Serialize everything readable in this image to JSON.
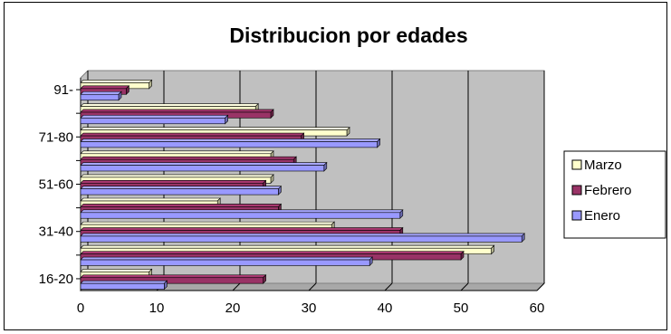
{
  "chart_data": {
    "type": "bar",
    "orientation": "horizontal",
    "title": "Distribucion por edades",
    "xlim": [
      0,
      60
    ],
    "x_ticks": [
      0,
      10,
      20,
      30,
      40,
      50,
      60
    ],
    "categories": [
      "16-20",
      "",
      "31-40",
      "",
      "51-60",
      "",
      "71-80",
      "",
      "91-"
    ],
    "series": [
      {
        "name": "Enero",
        "color": "#9999FF",
        "values": [
          11,
          38,
          58,
          42,
          26,
          32,
          39,
          19,
          5
        ]
      },
      {
        "name": "Febrero",
        "color": "#993366",
        "values": [
          24,
          50,
          42,
          26,
          24,
          28,
          29,
          25,
          6
        ]
      },
      {
        "name": "Marzo",
        "color": "#FFFFCC",
        "values": [
          9,
          54,
          33,
          18,
          25,
          25,
          35,
          23,
          9
        ]
      }
    ],
    "legend": [
      "Marzo",
      "Febrero",
      "Enero"
    ],
    "legend_position": "right",
    "grid": true,
    "plot_background": "#C0C0C0"
  }
}
